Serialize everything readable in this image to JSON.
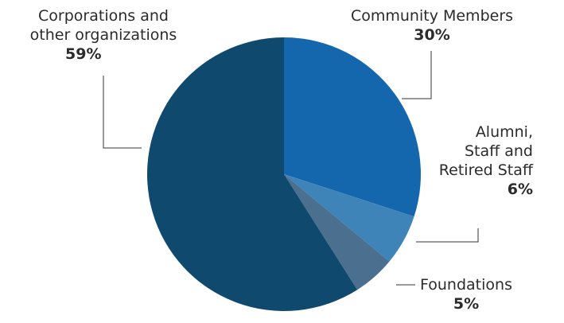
{
  "chart_data": {
    "type": "pie",
    "slices": [
      {
        "name": "Community Members",
        "value": 30,
        "value_label": "30%",
        "color": "#1567ad"
      },
      {
        "name": "Alumni, Staff and Retired Staff",
        "value": 6,
        "value_label": "6%",
        "color": "#3f84b9"
      },
      {
        "name": "Foundations",
        "value": 5,
        "value_label": "5%",
        "color": "#4a6f8f"
      },
      {
        "name": "Corporations and other organizations",
        "value": 59,
        "value_label": "59%",
        "color": "#0f4a6e"
      }
    ],
    "start_angle": "12 o'clock, clockwise"
  },
  "labels": {
    "community": {
      "name": "Community Members",
      "pct": "30%"
    },
    "alumni": {
      "line1": "Alumni,",
      "line2": "Staff and",
      "line3": "Retired Staff",
      "pct": "6%"
    },
    "foundations": {
      "name": "Foundations",
      "pct": "5%"
    },
    "corporations": {
      "line1": "Corporations and",
      "line2": "other organizations",
      "pct": "59%"
    }
  }
}
